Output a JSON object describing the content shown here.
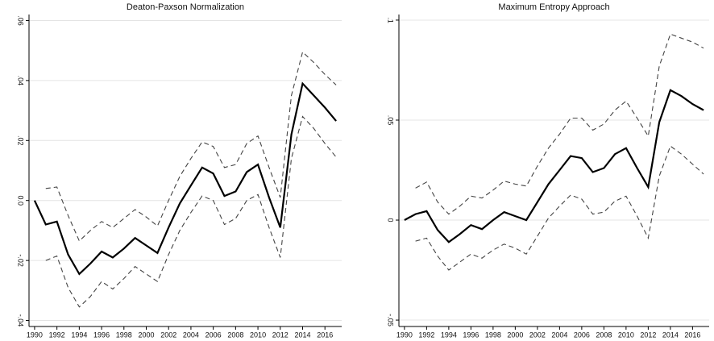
{
  "chart_data": [
    {
      "type": "line",
      "title": "Deaton-Paxson Normalization",
      "x": [
        1990,
        1991,
        1992,
        1993,
        1994,
        1995,
        1996,
        1997,
        1998,
        1999,
        2000,
        2001,
        2002,
        2003,
        2004,
        2005,
        2006,
        2007,
        2008,
        2009,
        2010,
        2011,
        2012,
        2013,
        2014,
        2015,
        2016,
        2017
      ],
      "series": [
        {
          "color": "#000000",
          "style": "solid",
          "values": [
            0,
            -0.008,
            -0.007,
            -0.018,
            -0.0245,
            -0.021,
            -0.017,
            -0.019,
            -0.016,
            -0.0125,
            -0.015,
            -0.0175,
            -0.009,
            -0.001,
            0.005,
            0.011,
            0.009,
            0.0015,
            0.003,
            0.0095,
            0.012,
            0.001,
            -0.009,
            0.022,
            0.039,
            0.035,
            0.031,
            0.0265
          ]
        },
        {
          "color": "#444444",
          "style": "dashed",
          "values": [
            null,
            0.004,
            0.0045,
            -0.005,
            -0.0135,
            -0.01,
            -0.007,
            -0.009,
            -0.006,
            -0.003,
            -0.0055,
            -0.0085,
            0.0,
            0.008,
            0.014,
            0.0195,
            0.018,
            0.011,
            0.012,
            0.019,
            0.0215,
            0.011,
            0.001,
            0.035,
            0.0495,
            0.046,
            0.042,
            0.0385
          ]
        },
        {
          "color": "#444444",
          "style": "dashed",
          "values": [
            null,
            -0.02,
            -0.0185,
            -0.029,
            -0.0355,
            -0.032,
            -0.027,
            -0.0295,
            -0.026,
            -0.022,
            -0.0245,
            -0.027,
            -0.018,
            -0.01,
            -0.004,
            0.0015,
            0.0,
            -0.008,
            -0.006,
            0.0,
            0.002,
            -0.009,
            -0.019,
            0.014,
            0.028,
            0.024,
            0.019,
            0.0145
          ]
        }
      ],
      "xlim": [
        1989.5,
        2017.5
      ],
      "xticks": [
        1990,
        1992,
        1994,
        1996,
        1998,
        2000,
        2002,
        2004,
        2006,
        2008,
        2010,
        2012,
        2014,
        2016
      ],
      "ylim": [
        -0.042,
        0.062
      ],
      "yticks": [
        {
          "value": -0.04,
          "label": "-.04"
        },
        {
          "value": -0.02,
          "label": "-.02"
        },
        {
          "value": 0,
          "label": "0.0"
        },
        {
          "value": 0.02,
          "label": ".02"
        },
        {
          "value": 0.04,
          "label": ".04"
        },
        {
          "value": 0.06,
          "label": ".06"
        }
      ],
      "grid": true
    },
    {
      "type": "line",
      "title": "Maximum Entropy Approach",
      "x": [
        1990,
        1991,
        1992,
        1993,
        1994,
        1995,
        1996,
        1997,
        1998,
        1999,
        2000,
        2001,
        2002,
        2003,
        2004,
        2005,
        2006,
        2007,
        2008,
        2009,
        2010,
        2011,
        2012,
        2013,
        2014,
        2015,
        2016,
        2017
      ],
      "series": [
        {
          "color": "#000000",
          "style": "solid",
          "values": [
            0,
            0.003,
            0.0045,
            -0.005,
            -0.011,
            -0.007,
            -0.0025,
            -0.0045,
            0.0,
            0.004,
            0.002,
            0.0,
            0.009,
            0.018,
            0.025,
            0.032,
            0.031,
            0.024,
            0.026,
            0.033,
            0.036,
            0.026,
            0.0165,
            0.049,
            0.065,
            0.062,
            0.058,
            0.055
          ]
        },
        {
          "color": "#444444",
          "style": "dashed",
          "values": [
            null,
            0.016,
            0.019,
            0.009,
            0.003,
            0.007,
            0.012,
            0.011,
            0.015,
            0.0195,
            0.018,
            0.017,
            0.027,
            0.036,
            0.043,
            0.051,
            0.051,
            0.045,
            0.048,
            0.055,
            0.0595,
            0.051,
            0.042,
            0.077,
            0.093,
            0.091,
            0.089,
            0.086
          ]
        },
        {
          "color": "#444444",
          "style": "dashed",
          "values": [
            null,
            -0.0105,
            -0.009,
            -0.018,
            -0.025,
            -0.021,
            -0.017,
            -0.019,
            -0.015,
            -0.012,
            -0.014,
            -0.017,
            -0.008,
            0.001,
            0.007,
            0.0125,
            0.0105,
            0.003,
            0.004,
            0.0095,
            0.012,
            0.002,
            -0.009,
            0.022,
            0.037,
            0.033,
            0.028,
            0.023
          ]
        }
      ],
      "xlim": [
        1989.5,
        2017.5
      ],
      "xticks": [
        1990,
        1992,
        1994,
        1996,
        1998,
        2000,
        2002,
        2004,
        2006,
        2008,
        2010,
        2012,
        2014,
        2016
      ],
      "ylim": [
        -0.0532,
        0.1028
      ],
      "yticks": [
        {
          "value": -0.05,
          "label": "-.05"
        },
        {
          "value": 0,
          "label": "0"
        },
        {
          "value": 0.05,
          "label": ".05"
        },
        {
          "value": 0.1,
          "label": ".1"
        }
      ],
      "grid": true
    }
  ]
}
